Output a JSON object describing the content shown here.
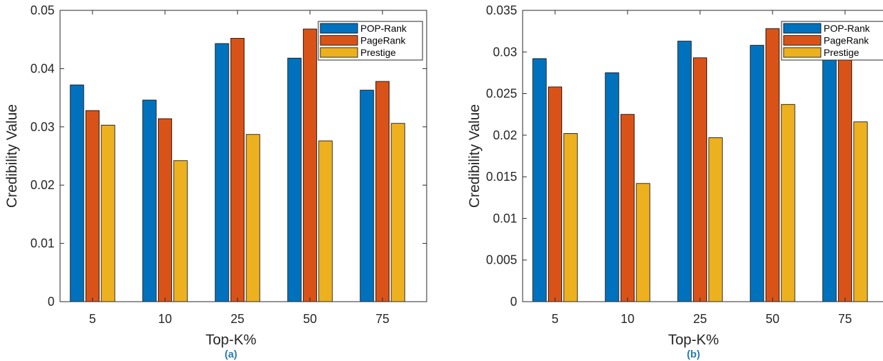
{
  "chart_data": [
    {
      "type": "bar",
      "caption": "(a)",
      "categories": [
        "5",
        "10",
        "25",
        "50",
        "75"
      ],
      "series": [
        {
          "name": "POP-Rank",
          "color": "#0072BD",
          "values": [
            0.0372,
            0.0346,
            0.0443,
            0.0418,
            0.0363
          ]
        },
        {
          "name": "PageRank",
          "color": "#D95319",
          "values": [
            0.0328,
            0.0314,
            0.0452,
            0.0468,
            0.0378
          ]
        },
        {
          "name": "Prestige",
          "color": "#EDB120",
          "values": [
            0.0303,
            0.0242,
            0.0287,
            0.0276,
            0.0306
          ]
        }
      ],
      "xlabel": "Top-K%",
      "ylabel": "Credibility Value",
      "ylim": [
        0,
        0.05
      ],
      "yticks": [
        "0",
        "0.01",
        "0.02",
        "0.03",
        "0.04",
        "0.05"
      ],
      "legend": "top-right",
      "grid": false
    },
    {
      "type": "bar",
      "caption": "(b)",
      "categories": [
        "5",
        "10",
        "25",
        "50",
        "75"
      ],
      "series": [
        {
          "name": "POP-Rank",
          "color": "#0072BD",
          "values": [
            0.0292,
            0.0275,
            0.0313,
            0.0308,
            0.0296
          ]
        },
        {
          "name": "PageRank",
          "color": "#D95319",
          "values": [
            0.0258,
            0.0225,
            0.0293,
            0.0328,
            0.0305
          ]
        },
        {
          "name": "Prestige",
          "color": "#EDB120",
          "values": [
            0.0202,
            0.0142,
            0.0197,
            0.0237,
            0.0216
          ]
        }
      ],
      "xlabel": "Top-K%",
      "ylabel": "Credibility Value",
      "ylim": [
        0,
        0.035
      ],
      "yticks": [
        "0",
        "0.005",
        "0.01",
        "0.015",
        "0.02",
        "0.025",
        "0.03",
        "0.035"
      ],
      "legend": "top-right",
      "grid": false
    }
  ]
}
